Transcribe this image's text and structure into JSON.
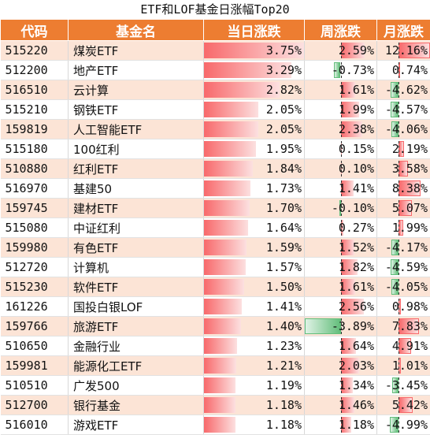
{
  "title": "ETF和LOF基金日涨幅Top20",
  "headers": [
    "代码",
    "基金名",
    "当日涨跌",
    "周涨跌",
    "月涨跌"
  ],
  "colors": {
    "header_bg": "#ED7D31",
    "stripe": "#FCE4D6",
    "positive_bar": "#F8696B",
    "negative_bar": "#63BE7B"
  },
  "rows": [
    {
      "code": "515220",
      "name": "煤炭ETF",
      "day": "3.75%",
      "week": "2.59%",
      "month": "12.16%"
    },
    {
      "code": "512200",
      "name": "地产ETF",
      "day": "3.29%",
      "week": "-0.73%",
      "month": "0.74%"
    },
    {
      "code": "516510",
      "name": "云计算",
      "day": "2.82%",
      "week": "1.61%",
      "month": "-4.62%"
    },
    {
      "code": "515210",
      "name": "钢铁ETF",
      "day": "2.05%",
      "week": "1.99%",
      "month": "-4.57%"
    },
    {
      "code": "159819",
      "name": "人工智能ETF",
      "day": "2.05%",
      "week": "2.38%",
      "month": "-4.06%"
    },
    {
      "code": "515180",
      "name": "100红利",
      "day": "1.95%",
      "week": "0.15%",
      "month": "2.19%"
    },
    {
      "code": "510880",
      "name": "红利ETF",
      "day": "1.84%",
      "week": "0.10%",
      "month": "3.58%"
    },
    {
      "code": "516970",
      "name": "基建50",
      "day": "1.73%",
      "week": "1.41%",
      "month": "8.38%"
    },
    {
      "code": "159745",
      "name": "建材ETF",
      "day": "1.70%",
      "week": "-0.10%",
      "month": "5.07%"
    },
    {
      "code": "515080",
      "name": "中证红利",
      "day": "1.64%",
      "week": "0.27%",
      "month": "1.99%"
    },
    {
      "code": "159980",
      "name": "有色ETF",
      "day": "1.59%",
      "week": "1.52%",
      "month": "-4.17%"
    },
    {
      "code": "512720",
      "name": "计算机",
      "day": "1.57%",
      "week": "1.82%",
      "month": "-4.59%"
    },
    {
      "code": "515230",
      "name": "软件ETF",
      "day": "1.50%",
      "week": "1.61%",
      "month": "-4.05%"
    },
    {
      "code": "161226",
      "name": "国投白银LOF",
      "day": "1.41%",
      "week": "2.56%",
      "month": "0.98%"
    },
    {
      "code": "159766",
      "name": "旅游ETF",
      "day": "1.40%",
      "week": "-3.89%",
      "month": "7.83%"
    },
    {
      "code": "510650",
      "name": "金融行业",
      "day": "1.23%",
      "week": "1.64%",
      "month": "4.91%"
    },
    {
      "code": "159981",
      "name": "能源化工ETF",
      "day": "1.21%",
      "week": "2.03%",
      "month": "1.01%"
    },
    {
      "code": "510510",
      "name": "广发500",
      "day": "1.19%",
      "week": "1.34%",
      "month": "-3.45%"
    },
    {
      "code": "512700",
      "name": "银行基金",
      "day": "1.18%",
      "week": "1.46%",
      "month": "5.42%"
    },
    {
      "code": "516010",
      "name": "游戏ETF",
      "day": "1.18%",
      "week": "1.18%",
      "month": "-4.99%"
    }
  ]
}
